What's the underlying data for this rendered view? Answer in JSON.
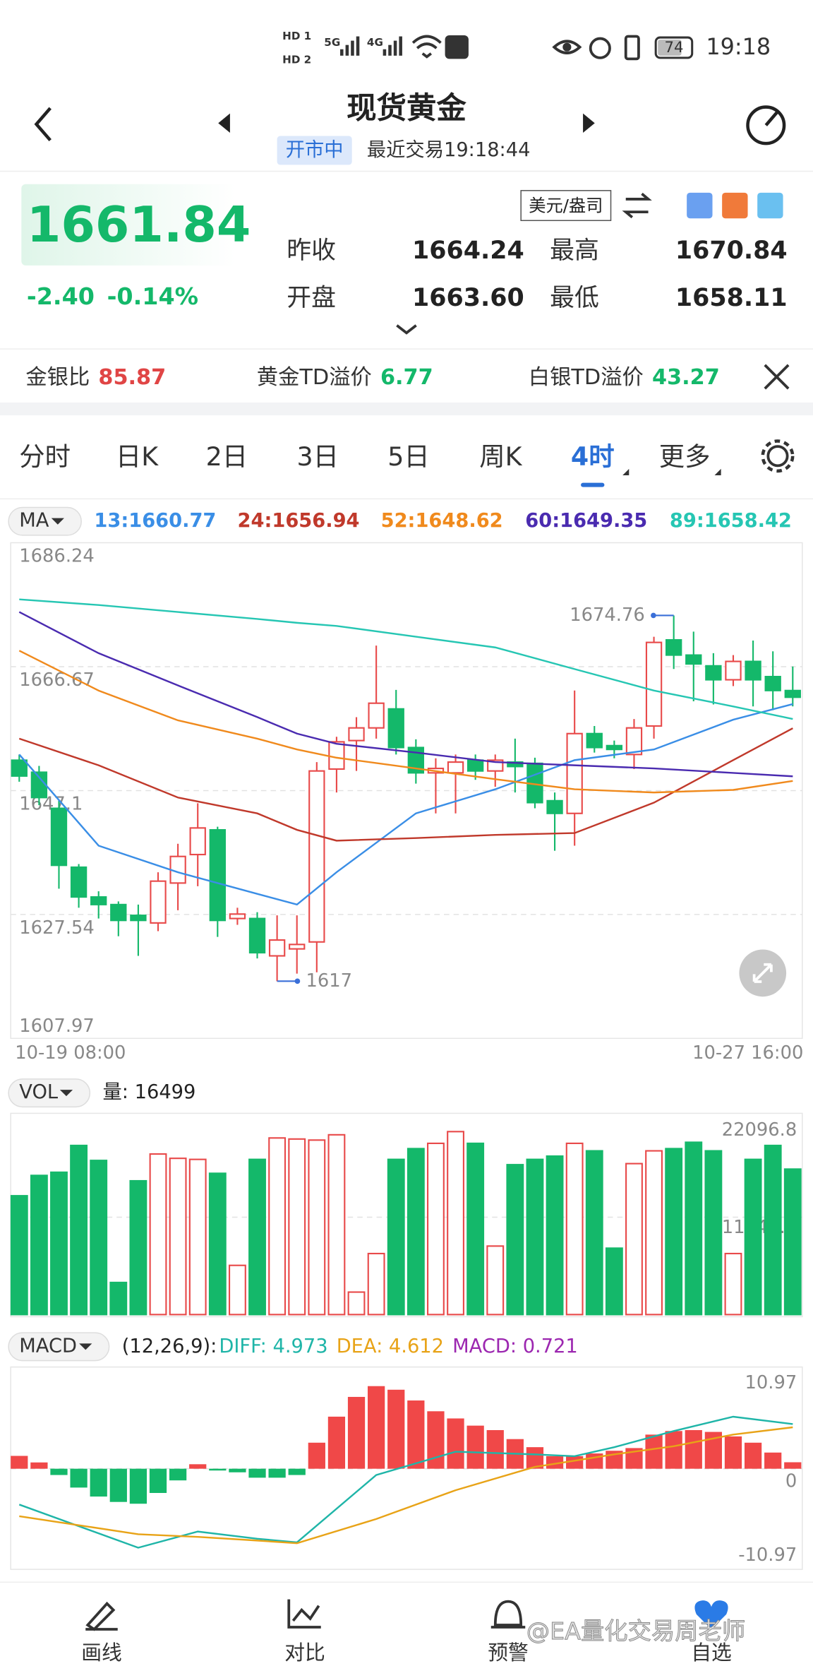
{
  "status_bar": {
    "time": "19:18",
    "battery": "74",
    "network": [
      "5G",
      "4G"
    ],
    "hd": [
      "HD 1",
      "HD 2"
    ]
  },
  "header": {
    "title": "现货黄金",
    "status": "开市中",
    "last_trade": "最近交易19:18:44"
  },
  "quote": {
    "price": "1661.84",
    "change": "-2.40",
    "change_pct": "-0.14%",
    "unit": "美元/盎司",
    "stats": [
      {
        "label": "昨收",
        "value": "1664.24"
      },
      {
        "label": "最高",
        "value": "1670.84"
      },
      {
        "label": "开盘",
        "value": "1663.60"
      },
      {
        "label": "最低",
        "value": "1658.11"
      }
    ]
  },
  "ratios": [
    {
      "label": "金银比",
      "value": "85.87",
      "color": "#e04545"
    },
    {
      "label": "黄金TD溢价",
      "value": "6.77",
      "color": "#14b86a"
    },
    {
      "label": "白银TD溢价",
      "value": "43.27",
      "color": "#14b86a"
    }
  ],
  "tabs": {
    "items": [
      "分时",
      "日K",
      "2日",
      "3日",
      "5日",
      "周K",
      "4时",
      "更多"
    ],
    "active": 6
  },
  "chart_data": [
    {
      "type": "candlestick",
      "button": "MA",
      "xlabels": [
        "10-19 08:00",
        "10-27 16:00"
      ],
      "ylim": [
        1607.97,
        1686.24
      ],
      "yticks": [
        1607.97,
        1627.54,
        1647.1,
        1666.67,
        1686.24
      ],
      "grid": true,
      "up_color": "#e84a4a",
      "down_color": "#14b86a",
      "open": [
        1651.9,
        1650.0,
        1644.3,
        1635.0,
        1630.3,
        1629.1,
        1627.4,
        1626.2,
        1632.5,
        1637.0,
        1640.9,
        1626.9,
        1626.9,
        1621.0,
        1622.1,
        1623.2,
        1650.5,
        1655.0,
        1657.0,
        1660.0,
        1653.9,
        1649.9,
        1649.9,
        1651.9,
        1650.2,
        1651.6,
        1651.4,
        1645.5,
        1643.5,
        1656.1,
        1654.2,
        1652.8,
        1657.3,
        1670.9,
        1668.5,
        1666.8,
        1664.6,
        1667.5,
        1665.1,
        1662.9
      ],
      "high": [
        1652.8,
        1651.0,
        1645.5,
        1635.5,
        1631.2,
        1629.6,
        1629.1,
        1634.2,
        1638.7,
        1645.1,
        1641.4,
        1628.6,
        1627.9,
        1627.4,
        1627.4,
        1651.6,
        1655.6,
        1658.7,
        1670.0,
        1663.0,
        1655.2,
        1652.2,
        1652.8,
        1652.8,
        1652.8,
        1655.3,
        1652.3,
        1646.8,
        1662.9,
        1657.3,
        1655.0,
        1658.4,
        1671.4,
        1674.76,
        1672.2,
        1668.8,
        1668.5,
        1670.8,
        1669.1,
        1666.7
      ],
      "low": [
        1648.5,
        1644.8,
        1631.6,
        1628.6,
        1626.9,
        1624.1,
        1621.0,
        1624.9,
        1628.2,
        1632.0,
        1624.0,
        1625.9,
        1620.6,
        1617,
        1618.2,
        1618.4,
        1646.8,
        1650.2,
        1655.3,
        1652.8,
        1648.2,
        1643.5,
        1643.5,
        1648.8,
        1647.7,
        1646.8,
        1644.3,
        1637.6,
        1638.4,
        1653.1,
        1652.2,
        1650.5,
        1655.3,
        1666.3,
        1661.2,
        1660.7,
        1663.6,
        1660.4,
        1659.8,
        1660.4
      ],
      "close": [
        1649.4,
        1646.0,
        1635.3,
        1630.3,
        1629.1,
        1626.6,
        1626.6,
        1632.8,
        1636.7,
        1641.2,
        1626.6,
        1627.6,
        1621.5,
        1623.5,
        1622.8,
        1650.2,
        1654.8,
        1657.0,
        1660.9,
        1653.9,
        1649.9,
        1650.6,
        1651.6,
        1650.2,
        1651.9,
        1650.9,
        1645.2,
        1643.5,
        1656.1,
        1653.9,
        1653.6,
        1657.0,
        1670.5,
        1668.5,
        1667.1,
        1664.6,
        1667.5,
        1664.6,
        1662.9,
        1661.84
      ],
      "markers": [
        1674.76,
        1617
      ],
      "series": [
        {
          "name": "13:1660.77",
          "color": "#3a8ee6",
          "x": [
            0,
            4,
            8,
            12,
            14,
            16,
            20,
            24,
            28,
            32,
            36,
            39
          ],
          "values": [
            1652.8,
            1638.4,
            1634.2,
            1630.8,
            1629.1,
            1634.2,
            1643.5,
            1647.3,
            1651.9,
            1653.6,
            1658.3,
            1660.77
          ]
        },
        {
          "name": "24:1656.94",
          "color": "#c0392b",
          "x": [
            0,
            4,
            8,
            12,
            14,
            16,
            20,
            24,
            28,
            32,
            36,
            39
          ],
          "values": [
            1655.3,
            1651.1,
            1646.0,
            1643.5,
            1640.9,
            1639.2,
            1639.6,
            1640.1,
            1640.4,
            1645.2,
            1651.9,
            1656.94
          ]
        },
        {
          "name": "52:1648.62",
          "color": "#f08a1d",
          "x": [
            0,
            4,
            8,
            12,
            14,
            16,
            20,
            24,
            28,
            32,
            36,
            39
          ],
          "values": [
            1669.2,
            1662.9,
            1658.2,
            1655.3,
            1653.6,
            1652.3,
            1650.6,
            1648.9,
            1647.3,
            1646.8,
            1647.2,
            1648.62
          ]
        },
        {
          "name": "60:1649.35",
          "color": "#4a2bb0",
          "x": [
            0,
            4,
            8,
            12,
            14,
            16,
            20,
            24,
            28,
            32,
            36,
            39
          ],
          "values": [
            1675.3,
            1668.8,
            1663.7,
            1658.7,
            1656.1,
            1654.5,
            1653.1,
            1651.6,
            1651.1,
            1650.6,
            1649.9,
            1649.35
          ]
        },
        {
          "name": "89:1658.42",
          "color": "#26c6b3",
          "x": [
            0,
            4,
            8,
            12,
            14,
            16,
            20,
            24,
            28,
            32,
            36,
            39
          ],
          "values": [
            1677.3,
            1676.4,
            1675.3,
            1674.2,
            1673.6,
            1673.1,
            1671.4,
            1669.7,
            1666.3,
            1662.9,
            1660.4,
            1658.42
          ]
        }
      ]
    },
    {
      "type": "bar",
      "button": "VOL",
      "label": "量: 16499",
      "ylim": [
        0,
        22096.8
      ],
      "yticks": [
        0,
        11048.4,
        22096.8
      ],
      "grid": true,
      "values": [
        13475,
        15780,
        16140,
        19180,
        17480,
        3640,
        15170,
        18210,
        17720,
        17600,
        16020,
        5580,
        17600,
        20030,
        19910,
        19790,
        20390,
        2550,
        6920,
        17600,
        18820,
        19420,
        20750,
        19420,
        7770,
        17000,
        17600,
        17970,
        19420,
        18570,
        7530,
        17120,
        18570,
        18820,
        19540,
        18570,
        6920,
        17600,
        19180,
        16499
      ]
    },
    {
      "type": "macd",
      "button": "MACD",
      "params": "(12,26,9):",
      "ylim": [
        -10.97,
        10.97
      ],
      "yticks": [
        -10.97,
        0,
        10.97
      ],
      "grid": true,
      "up_color": "#f04848",
      "down_color": "#14b86a",
      "series": [
        {
          "name": "DIFF: 4.973",
          "color": "#1fb5a8",
          "x": [
            0,
            6,
            9,
            12,
            14,
            18,
            22,
            26,
            28,
            30,
            33,
            36,
            39
          ],
          "values": [
            -4.0,
            -8.8,
            -7.0,
            -7.8,
            -8.2,
            -0.7,
            1.9,
            1.6,
            1.4,
            2.4,
            4.2,
            5.8,
            4.973
          ]
        },
        {
          "name": "DEA: 4.612",
          "color": "#e8a317",
          "x": [
            0,
            6,
            9,
            12,
            14,
            18,
            22,
            26,
            28,
            30,
            33,
            36,
            39
          ],
          "values": [
            -5.3,
            -7.3,
            -7.6,
            -8.0,
            -8.3,
            -5.6,
            -2.4,
            0.2,
            0.9,
            1.6,
            2.5,
            3.8,
            4.612
          ]
        },
        {
          "name": "MACD: 0.721",
          "color": "#9c27b0",
          "values": [
            1.43,
            0.7,
            -0.7,
            -2.1,
            -3.1,
            -3.7,
            -3.9,
            -2.7,
            -1.3,
            0.5,
            -0.2,
            -0.4,
            -1.0,
            -1.0,
            -0.7,
            2.9,
            5.8,
            8.0,
            9.2,
            8.8,
            7.6,
            6.4,
            5.6,
            4.8,
            4.3,
            3.3,
            2.4,
            1.4,
            1.4,
            1.7,
            2.0,
            2.3,
            3.8,
            4.2,
            4.3,
            4.1,
            3.6,
            2.9,
            1.8,
            0.721
          ]
        }
      ]
    }
  ],
  "nav": [
    "画线",
    "对比",
    "预警",
    "自选"
  ],
  "watermark": "@EA量化交易周老师"
}
